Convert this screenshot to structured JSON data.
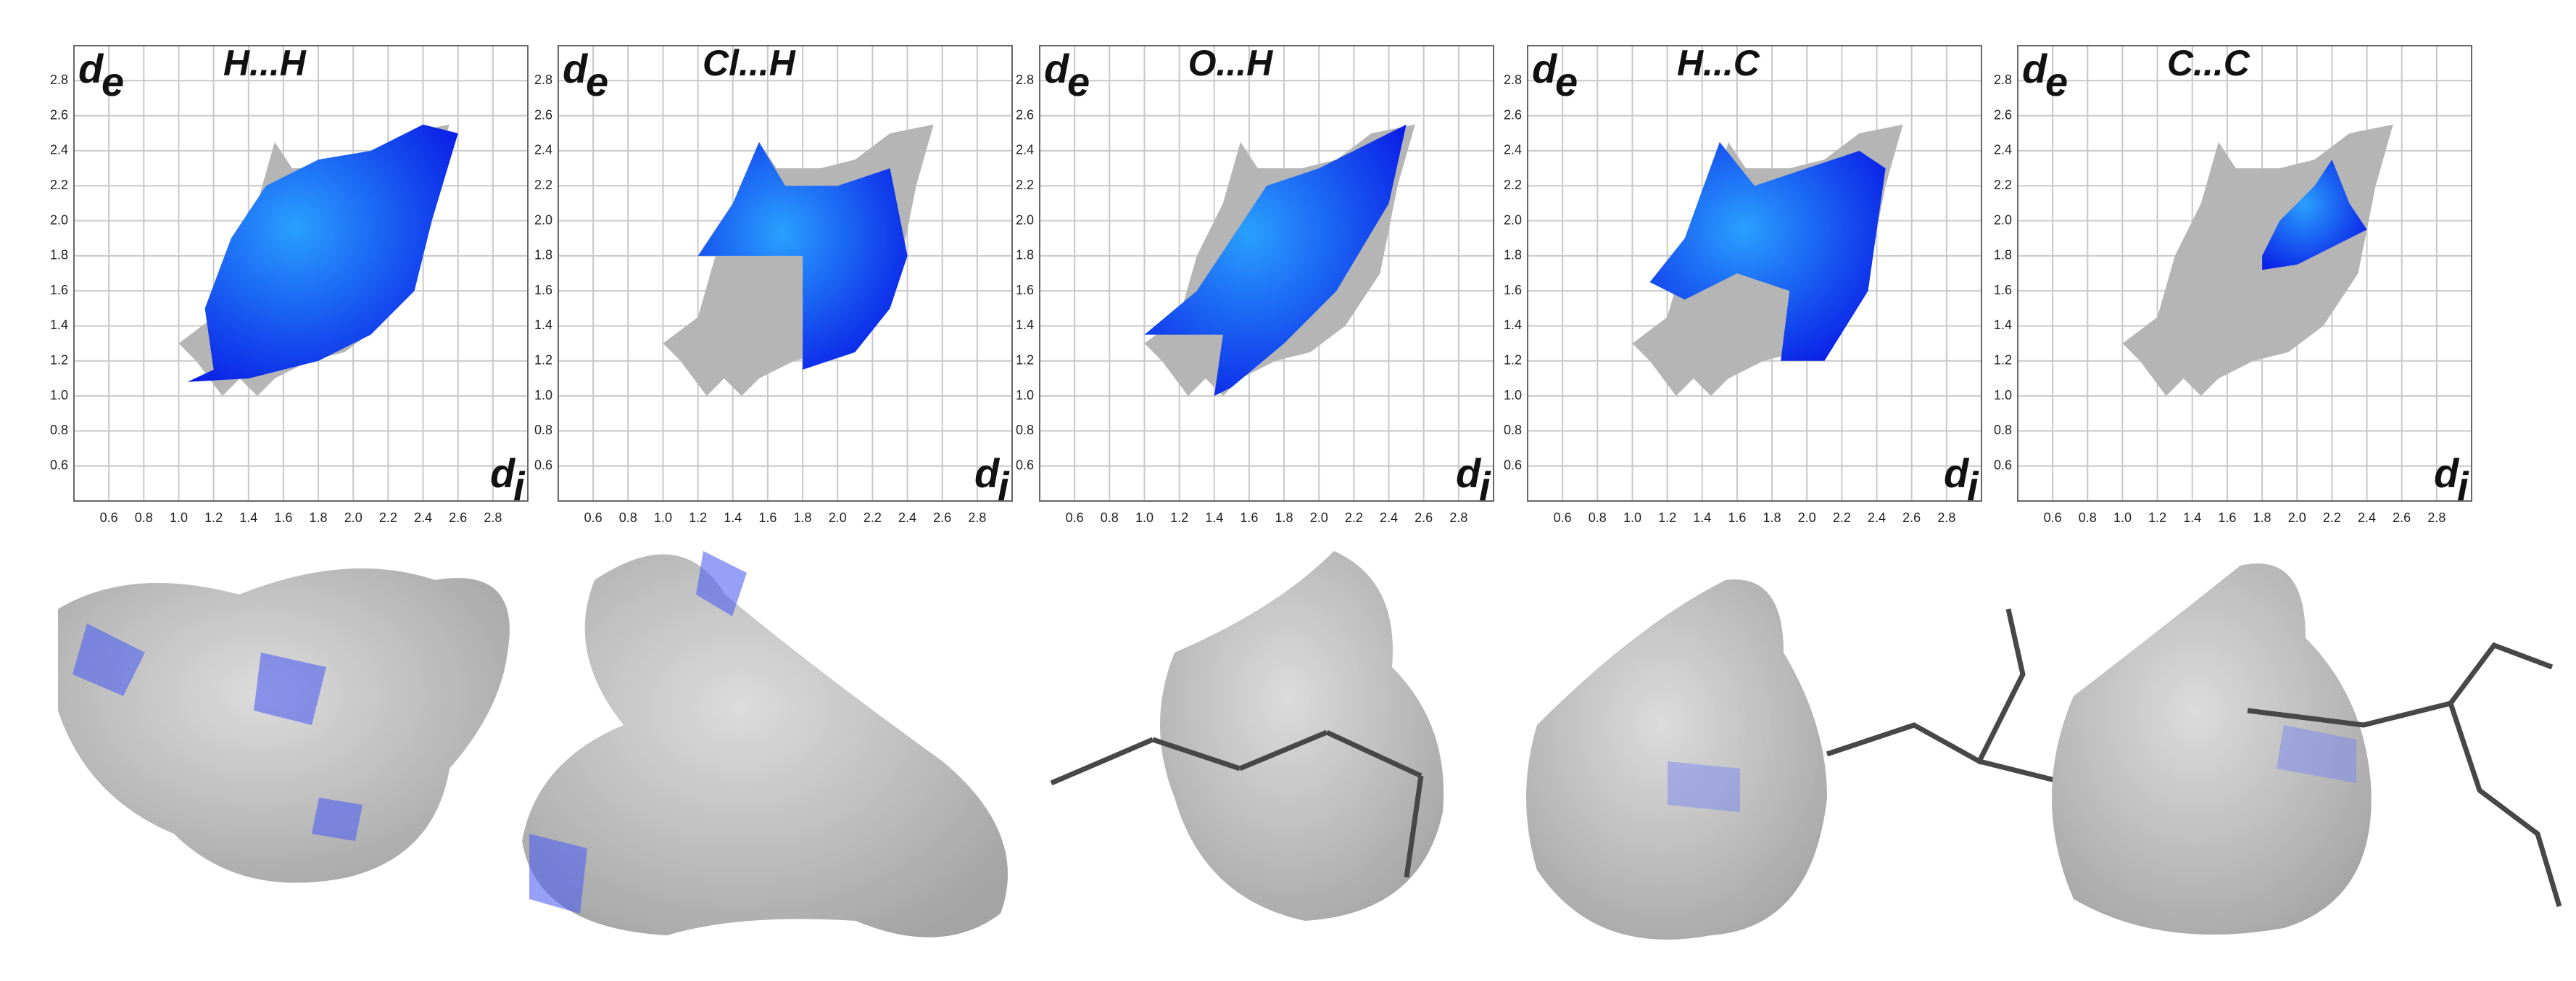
{
  "chart_data": [
    {
      "type": "fingerprint",
      "title": "H...H",
      "y_label": "d",
      "y_label_sub": "e",
      "x_label": "d",
      "x_label_sub": "i",
      "xlim": [
        0.4,
        3.0
      ],
      "ylim": [
        0.4,
        3.0
      ],
      "grid": true,
      "xticks": [
        0.6,
        0.8,
        {
          "value": 1,
          "label": "1.0"
        },
        1.2,
        1.4,
        1.6,
        1.8,
        {
          "value": 2,
          "label": "2.0"
        },
        2.2,
        2.4,
        2.6,
        2.8
      ],
      "yticks": [
        0.6,
        0.8,
        {
          "value": 1,
          "label": "1.0"
        },
        1.2,
        1.4,
        1.6,
        1.8,
        {
          "value": 2,
          "label": "2.0"
        },
        2.2,
        2.4,
        2.6,
        2.8
      ]
    },
    {
      "type": "fingerprint",
      "title": "Cl...H",
      "y_label": "d",
      "y_label_sub": "e",
      "x_label": "d",
      "x_label_sub": "i",
      "xlim": [
        0.4,
        3.0
      ],
      "ylim": [
        0.4,
        3.0
      ],
      "grid": true,
      "xticks": [
        0.6,
        0.8,
        {
          "value": 1,
          "label": "1.0"
        },
        1.2,
        1.4,
        1.6,
        1.8,
        {
          "value": 2,
          "label": "2.0"
        },
        2.2,
        2.4,
        2.6,
        2.8
      ],
      "yticks": [
        0.6,
        0.8,
        {
          "value": 1,
          "label": "1.0"
        },
        1.2,
        1.4,
        1.6,
        1.8,
        {
          "value": 2,
          "label": "2.0"
        },
        2.2,
        2.4,
        2.6,
        2.8
      ]
    },
    {
      "type": "fingerprint",
      "title": "O...H",
      "y_label": "d",
      "y_label_sub": "e",
      "x_label": "d",
      "x_label_sub": "i",
      "xlim": [
        0.4,
        3.0
      ],
      "ylim": [
        0.4,
        3.0
      ],
      "grid": true,
      "xticks": [
        0.6,
        0.8,
        {
          "value": 1,
          "label": "1.0"
        },
        1.2,
        1.4,
        1.6,
        1.8,
        {
          "value": 2,
          "label": "2.0"
        },
        2.2,
        2.4,
        2.6,
        2.8
      ],
      "yticks": [
        0.6,
        0.8,
        {
          "value": 1,
          "label": "1.0"
        },
        1.2,
        1.4,
        1.6,
        1.8,
        {
          "value": 2,
          "label": "2.0"
        },
        2.2,
        2.4,
        2.6,
        2.8
      ]
    },
    {
      "type": "fingerprint",
      "title": "H...C",
      "y_label": "d",
      "y_label_sub": "e",
      "x_label": "d",
      "x_label_sub": "i",
      "xlim": [
        0.4,
        3.0
      ],
      "ylim": [
        0.4,
        3.0
      ],
      "grid": true,
      "xticks": [
        0.6,
        0.8,
        {
          "value": 1,
          "label": "1.0"
        },
        1.2,
        1.4,
        1.6,
        1.8,
        {
          "value": 2,
          "label": "2.0"
        },
        2.2,
        2.4,
        2.6,
        2.8
      ],
      "yticks": [
        0.6,
        0.8,
        {
          "value": 1,
          "label": "1.0"
        },
        1.2,
        1.4,
        1.6,
        1.8,
        {
          "value": 2,
          "label": "2.0"
        },
        2.2,
        2.4,
        2.6,
        2.8
      ]
    },
    {
      "type": "fingerprint",
      "title": "C...C",
      "y_label": "d",
      "y_label_sub": "e",
      "x_label": "d",
      "x_label_sub": "i",
      "xlim": [
        0.4,
        3.0
      ],
      "ylim": [
        0.4,
        3.0
      ],
      "grid": true,
      "xticks": [
        0.6,
        0.8,
        {
          "value": 1,
          "label": "1.0"
        },
        1.2,
        1.4,
        1.6,
        1.8,
        {
          "value": 2,
          "label": "2.0"
        },
        2.2,
        2.4,
        2.6,
        2.8
      ],
      "yticks": [
        0.6,
        0.8,
        {
          "value": 1,
          "label": "1.0"
        },
        1.2,
        1.4,
        1.6,
        1.8,
        {
          "value": 2,
          "label": "2.0"
        },
        2.2,
        2.4,
        2.6,
        2.8
      ]
    }
  ]
}
